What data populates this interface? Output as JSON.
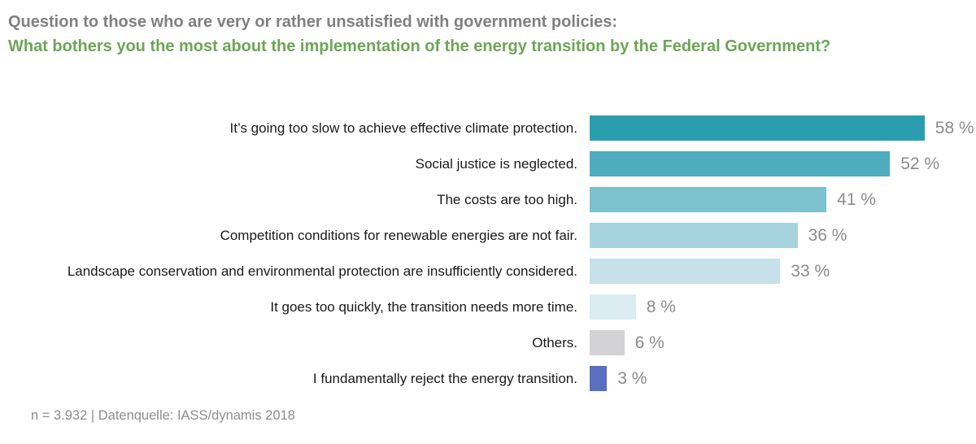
{
  "chart_data": {
    "type": "bar",
    "orientation": "horizontal",
    "context_line": "Question to those who are very or rather unsatisfied with government policies:",
    "title": "What bothers you the most about the implementation of the energy transition by the Federal Government?",
    "categories": [
      "It’s going too slow to achieve effective climate protection.",
      "Social justice is neglected.",
      "The costs are too high.",
      "Competition conditions for renewable energies are not fair.",
      "Landscape conservation and environmental protection are insufficiently considered.",
      "It goes too quickly, the transition needs more time.",
      "Others.",
      "I fundamentally reject the energy transition."
    ],
    "values": [
      58,
      52,
      41,
      36,
      33,
      8,
      6,
      3
    ],
    "value_labels": [
      "58 %",
      "52 %",
      "41 %",
      "36 %",
      "33 %",
      "8 %",
      "6 %",
      "3 %"
    ],
    "unit": "%",
    "bar_colors": [
      "#2A9DAF",
      "#4EACBE",
      "#7DC0CE",
      "#A6D3DD",
      "#C6E1E9",
      "#DCEDF2",
      "#D3D3D5",
      "#5A6FBF"
    ],
    "xlim": [
      0,
      65
    ],
    "grid": false,
    "legend": false,
    "context_color": "#808080",
    "title_color": "#6DA556",
    "category_label_color": "#1a1a1a",
    "value_label_color": "#8C8C8C",
    "source_note": "n = 3.932 | Datenquelle: IASS/dynamis 2018"
  }
}
